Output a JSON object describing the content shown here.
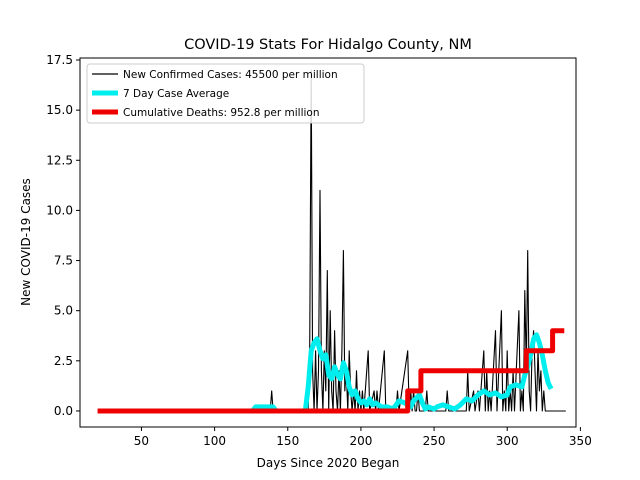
{
  "chart_data": {
    "type": "line",
    "title": "COVID-19 Stats For Hidalgo County, NM",
    "xlabel": "Days Since 2020 Began",
    "ylabel": "New COVID-19 Cases",
    "xlim": [
      8,
      347
    ],
    "ylim": [
      -0.8,
      17.6
    ],
    "xticks": [
      50,
      100,
      150,
      200,
      250,
      300,
      350
    ],
    "yticks": [
      0.0,
      2.5,
      5.0,
      7.5,
      10.0,
      12.5,
      15.0,
      17.5
    ],
    "xtick_labels": [
      "50",
      "100",
      "150",
      "200",
      "250",
      "300",
      "350"
    ],
    "ytick_labels": [
      "0.0",
      "2.5",
      "5.0",
      "7.5",
      "10.0",
      "12.5",
      "15.0",
      "17.5"
    ],
    "grid": false,
    "legend_position": "top-left",
    "series": [
      {
        "name": "New Confirmed Cases: 45500 per million",
        "color": "#000000",
        "style": "thin",
        "points": [
          [
            20,
            0
          ],
          [
            138,
            0
          ],
          [
            139,
            1
          ],
          [
            140,
            0
          ],
          [
            164,
            0
          ],
          [
            165,
            3
          ],
          [
            166,
            17
          ],
          [
            167,
            2
          ],
          [
            168,
            0
          ],
          [
            169,
            3
          ],
          [
            170,
            0
          ],
          [
            171,
            2
          ],
          [
            172,
            11
          ],
          [
            173,
            2
          ],
          [
            174,
            0
          ],
          [
            175,
            3
          ],
          [
            176,
            1
          ],
          [
            177,
            7
          ],
          [
            178,
            0
          ],
          [
            179,
            5
          ],
          [
            180,
            1
          ],
          [
            181,
            0
          ],
          [
            182,
            4
          ],
          [
            183,
            1
          ],
          [
            184,
            0
          ],
          [
            185,
            2
          ],
          [
            186,
            0
          ],
          [
            187,
            3
          ],
          [
            188,
            8
          ],
          [
            189,
            1
          ],
          [
            190,
            2
          ],
          [
            191,
            0
          ],
          [
            192,
            3
          ],
          [
            193,
            1
          ],
          [
            194,
            0
          ],
          [
            195,
            1
          ],
          [
            196,
            0
          ],
          [
            197,
            2
          ],
          [
            198,
            0
          ],
          [
            199,
            1
          ],
          [
            200,
            0
          ],
          [
            201,
            1
          ],
          [
            202,
            0
          ],
          [
            205,
            3
          ],
          [
            206,
            0
          ],
          [
            209,
            1
          ],
          [
            210,
            0
          ],
          [
            211,
            1
          ],
          [
            212,
            0
          ],
          [
            216,
            3
          ],
          [
            217,
            0
          ],
          [
            224,
            0
          ],
          [
            225,
            1
          ],
          [
            226,
            0
          ],
          [
            232,
            3
          ],
          [
            233,
            0
          ],
          [
            234,
            1
          ],
          [
            235,
            0
          ],
          [
            236,
            1
          ],
          [
            237,
            0
          ],
          [
            238,
            0
          ],
          [
            239,
            1
          ],
          [
            240,
            0
          ],
          [
            244,
            0
          ],
          [
            245,
            1
          ],
          [
            246,
            0
          ],
          [
            258,
            0
          ],
          [
            259,
            1
          ],
          [
            260,
            0
          ],
          [
            272,
            0
          ],
          [
            273,
            2
          ],
          [
            274,
            0
          ],
          [
            277,
            1
          ],
          [
            278,
            0
          ],
          [
            280,
            1
          ],
          [
            281,
            0
          ],
          [
            284,
            3
          ],
          [
            285,
            0
          ],
          [
            286,
            2
          ],
          [
            287,
            0
          ],
          [
            288,
            1
          ],
          [
            289,
            0
          ],
          [
            292,
            4
          ],
          [
            293,
            0
          ],
          [
            296,
            5
          ],
          [
            297,
            0
          ],
          [
            298,
            1
          ],
          [
            299,
            0
          ],
          [
            300,
            3
          ],
          [
            301,
            0
          ],
          [
            302,
            1
          ],
          [
            303,
            0
          ],
          [
            304,
            2
          ],
          [
            305,
            0
          ],
          [
            308,
            5
          ],
          [
            309,
            0
          ],
          [
            310,
            1
          ],
          [
            311,
            0
          ],
          [
            312,
            6
          ],
          [
            313,
            2
          ],
          [
            314,
            8
          ],
          [
            315,
            1
          ],
          [
            316,
            0
          ],
          [
            317,
            3
          ],
          [
            318,
            4
          ],
          [
            319,
            2
          ],
          [
            320,
            0
          ],
          [
            321,
            3
          ],
          [
            322,
            1
          ],
          [
            323,
            2
          ],
          [
            324,
            0
          ],
          [
            325,
            1
          ],
          [
            326,
            0
          ],
          [
            340,
            0
          ]
        ]
      },
      {
        "name": "7 Day Case Average",
        "color": "#00eeee",
        "style": "thick",
        "points": [
          [
            126,
            0
          ],
          [
            128,
            0.2
          ],
          [
            140,
            0.2
          ],
          [
            142,
            0
          ],
          [
            162,
            0
          ],
          [
            164,
            1.2
          ],
          [
            166,
            3.0
          ],
          [
            168,
            3.4
          ],
          [
            170,
            3.6
          ],
          [
            172,
            3.0
          ],
          [
            174,
            2.6
          ],
          [
            176,
            2.8
          ],
          [
            178,
            1.8
          ],
          [
            180,
            1.6
          ],
          [
            182,
            2.2
          ],
          [
            184,
            1.8
          ],
          [
            186,
            1.6
          ],
          [
            188,
            2.4
          ],
          [
            190,
            2.0
          ],
          [
            192,
            1.2
          ],
          [
            194,
            0.8
          ],
          [
            196,
            1.0
          ],
          [
            198,
            0.6
          ],
          [
            200,
            0.4
          ],
          [
            202,
            0.5
          ],
          [
            204,
            0.3
          ],
          [
            206,
            0.6
          ],
          [
            208,
            0.3
          ],
          [
            210,
            0.4
          ],
          [
            214,
            0.2
          ],
          [
            218,
            0.2
          ],
          [
            222,
            0.1
          ],
          [
            226,
            0.5
          ],
          [
            230,
            0.4
          ],
          [
            234,
            0.2
          ],
          [
            236,
            0.5
          ],
          [
            240,
            0.8
          ],
          [
            242,
            0.4
          ],
          [
            244,
            0.1
          ],
          [
            246,
            0.2
          ],
          [
            250,
            0.1
          ],
          [
            252,
            0.2
          ],
          [
            256,
            0.3
          ],
          [
            260,
            0.2
          ],
          [
            264,
            0.1
          ],
          [
            268,
            0.3
          ],
          [
            272,
            0.6
          ],
          [
            276,
            0.5
          ],
          [
            280,
            0.8
          ],
          [
            284,
            1.0
          ],
          [
            288,
            0.8
          ],
          [
            292,
            0.9
          ],
          [
            296,
            0.7
          ],
          [
            300,
            0.8
          ],
          [
            302,
            1.2
          ],
          [
            306,
            1.3
          ],
          [
            310,
            1.2
          ],
          [
            312,
            1.8
          ],
          [
            314,
            2.2
          ],
          [
            316,
            2.8
          ],
          [
            318,
            3.6
          ],
          [
            320,
            3.8
          ],
          [
            322,
            3.4
          ],
          [
            324,
            2.8
          ],
          [
            326,
            2.0
          ],
          [
            328,
            1.4
          ],
          [
            330,
            1.1
          ]
        ]
      },
      {
        "name": "Cumulative Deaths: 952.8 per million",
        "color": "#ee0000",
        "style": "thick",
        "points": [
          [
            20,
            0
          ],
          [
            232,
            0
          ],
          [
            232,
            1
          ],
          [
            241,
            1
          ],
          [
            241,
            2
          ],
          [
            313,
            2
          ],
          [
            313,
            3
          ],
          [
            331,
            3
          ],
          [
            331,
            4
          ],
          [
            339,
            4
          ]
        ]
      }
    ]
  }
}
